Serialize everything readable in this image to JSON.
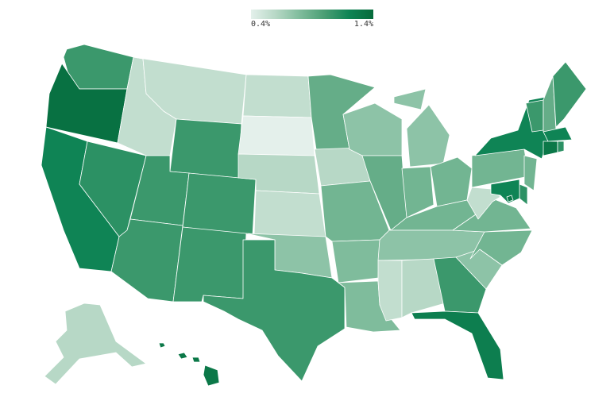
{
  "legend": {
    "min_label": "0.4%",
    "max_label": "1.4%",
    "colors": [
      "#e4f0eb",
      "#b7d8c6",
      "#7fbc9c",
      "#4a9e74",
      "#0f8455",
      "#066b3b"
    ]
  },
  "states": [
    {
      "abbr": "WA",
      "value": 1.05
    },
    {
      "abbr": "OR",
      "value": 1.35
    },
    {
      "abbr": "CA",
      "value": 1.2
    },
    {
      "abbr": "NV",
      "value": 1.1
    },
    {
      "abbr": "ID",
      "value": 0.55
    },
    {
      "abbr": "MT",
      "value": 0.55
    },
    {
      "abbr": "WY",
      "value": 1.05
    },
    {
      "abbr": "UT",
      "value": 1.05
    },
    {
      "abbr": "CO",
      "value": 1.05
    },
    {
      "abbr": "AZ",
      "value": 1.05
    },
    {
      "abbr": "NM",
      "value": 1.05
    },
    {
      "abbr": "ND",
      "value": 0.55
    },
    {
      "abbr": "SD",
      "value": 0.4
    },
    {
      "abbr": "NE",
      "value": 0.6
    },
    {
      "abbr": "KS",
      "value": 0.55
    },
    {
      "abbr": "OK",
      "value": 0.75
    },
    {
      "abbr": "TX",
      "value": 1.05
    },
    {
      "abbr": "MN",
      "value": 0.9
    },
    {
      "abbr": "IA",
      "value": 0.6
    },
    {
      "abbr": "MO",
      "value": 0.85
    },
    {
      "abbr": "AR",
      "value": 0.8
    },
    {
      "abbr": "LA",
      "value": 0.8
    },
    {
      "abbr": "WI",
      "value": 0.75
    },
    {
      "abbr": "IL",
      "value": 0.9
    },
    {
      "abbr": "MI",
      "value": 0.75
    },
    {
      "abbr": "IN",
      "value": 0.85
    },
    {
      "abbr": "OH",
      "value": 0.85
    },
    {
      "abbr": "KY",
      "value": 0.85
    },
    {
      "abbr": "TN",
      "value": 0.75
    },
    {
      "abbr": "MS",
      "value": 0.55
    },
    {
      "abbr": "AL",
      "value": 0.6
    },
    {
      "abbr": "GA",
      "value": 1.05
    },
    {
      "abbr": "FL",
      "value": 1.25
    },
    {
      "abbr": "SC",
      "value": 0.75
    },
    {
      "abbr": "NC",
      "value": 0.85
    },
    {
      "abbr": "VA",
      "value": 0.85
    },
    {
      "abbr": "WV",
      "value": 0.55
    },
    {
      "abbr": "PA",
      "value": 0.85
    },
    {
      "abbr": "NY",
      "value": 1.2
    },
    {
      "abbr": "VT",
      "value": 1.05
    },
    {
      "abbr": "NH",
      "value": 0.9
    },
    {
      "abbr": "ME",
      "value": 1.05
    },
    {
      "abbr": "MA",
      "value": 1.2
    },
    {
      "abbr": "CT",
      "value": 1.3
    },
    {
      "abbr": "RI",
      "value": 1.1
    },
    {
      "abbr": "NJ",
      "value": 0.85
    },
    {
      "abbr": "DE",
      "value": 1.1
    },
    {
      "abbr": "MD",
      "value": 1.2
    },
    {
      "abbr": "DC",
      "value": 1.3
    },
    {
      "abbr": "AK",
      "value": 0.6
    },
    {
      "abbr": "HI",
      "value": 1.3
    }
  ]
}
